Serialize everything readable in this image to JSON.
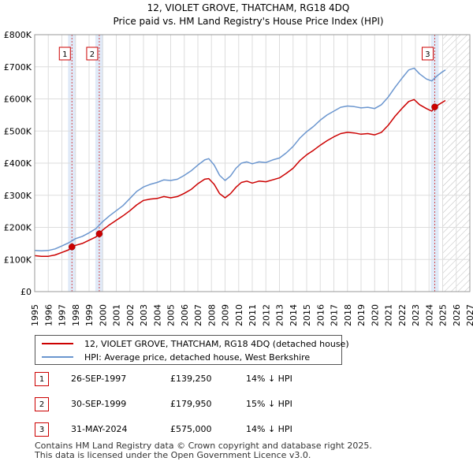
{
  "chart_data": {
    "type": "line",
    "title": "12, VIOLET GROVE, THATCHAM, RG18 4DQ",
    "subtitle": "Price paid vs. HM Land Registry's House Price Index (HPI)",
    "xlim": [
      1995,
      2027
    ],
    "ylim": [
      0,
      800000
    ],
    "x_ticks": [
      "1995",
      "1996",
      "1997",
      "1998",
      "1999",
      "2000",
      "2001",
      "2002",
      "2003",
      "2004",
      "2005",
      "2006",
      "2007",
      "2008",
      "2009",
      "2010",
      "2011",
      "2012",
      "2013",
      "2014",
      "2015",
      "2016",
      "2017",
      "2018",
      "2019",
      "2020",
      "2021",
      "2022",
      "2023",
      "2024",
      "2025",
      "2026",
      "2027"
    ],
    "y_ticks": [
      {
        "value": 0,
        "label": "£0"
      },
      {
        "value": 100000,
        "label": "£100K"
      },
      {
        "value": 200000,
        "label": "£200K"
      },
      {
        "value": 300000,
        "label": "£300K"
      },
      {
        "value": 400000,
        "label": "£400K"
      },
      {
        "value": 500000,
        "label": "£500K"
      },
      {
        "value": 600000,
        "label": "£600K"
      },
      {
        "value": 700000,
        "label": "£700K"
      },
      {
        "value": 800000,
        "label": "£800K"
      }
    ],
    "future_start": 2025.0,
    "series": [
      {
        "name": "12, VIOLET GROVE, THATCHAM, RG18 4DQ (detached house)",
        "color": "#cc0000",
        "points": [
          [
            1995.0,
            112000
          ],
          [
            1995.5,
            110000
          ],
          [
            1996.0,
            110000
          ],
          [
            1996.5,
            114000
          ],
          [
            1997.0,
            122000
          ],
          [
            1997.5,
            130000
          ],
          [
            1997.74,
            139250
          ],
          [
            1998.0,
            144000
          ],
          [
            1998.5,
            150000
          ],
          [
            1999.0,
            160000
          ],
          [
            1999.5,
            170000
          ],
          [
            1999.75,
            179950
          ],
          [
            2000.0,
            192000
          ],
          [
            2000.5,
            208000
          ],
          [
            2001.0,
            222000
          ],
          [
            2001.5,
            236000
          ],
          [
            2002.0,
            252000
          ],
          [
            2002.5,
            270000
          ],
          [
            2003.0,
            284000
          ],
          [
            2003.5,
            288000
          ],
          [
            2004.0,
            290000
          ],
          [
            2004.5,
            296000
          ],
          [
            2005.0,
            292000
          ],
          [
            2005.5,
            296000
          ],
          [
            2006.0,
            306000
          ],
          [
            2006.5,
            318000
          ],
          [
            2007.0,
            336000
          ],
          [
            2007.5,
            350000
          ],
          [
            2007.8,
            352000
          ],
          [
            2008.2,
            334000
          ],
          [
            2008.6,
            305000
          ],
          [
            2009.0,
            292000
          ],
          [
            2009.4,
            305000
          ],
          [
            2009.8,
            325000
          ],
          [
            2010.2,
            340000
          ],
          [
            2010.6,
            344000
          ],
          [
            2011.0,
            338000
          ],
          [
            2011.5,
            344000
          ],
          [
            2012.0,
            342000
          ],
          [
            2012.5,
            348000
          ],
          [
            2013.0,
            354000
          ],
          [
            2013.5,
            368000
          ],
          [
            2014.0,
            384000
          ],
          [
            2014.5,
            408000
          ],
          [
            2015.0,
            426000
          ],
          [
            2015.5,
            440000
          ],
          [
            2016.0,
            456000
          ],
          [
            2016.5,
            470000
          ],
          [
            2017.0,
            482000
          ],
          [
            2017.5,
            492000
          ],
          [
            2018.0,
            496000
          ],
          [
            2018.5,
            494000
          ],
          [
            2019.0,
            490000
          ],
          [
            2019.5,
            492000
          ],
          [
            2020.0,
            488000
          ],
          [
            2020.5,
            496000
          ],
          [
            2021.0,
            518000
          ],
          [
            2021.5,
            546000
          ],
          [
            2022.0,
            570000
          ],
          [
            2022.5,
            592000
          ],
          [
            2022.9,
            598000
          ],
          [
            2023.3,
            582000
          ],
          [
            2023.8,
            570000
          ],
          [
            2024.2,
            562000
          ],
          [
            2024.42,
            575000
          ],
          [
            2024.7,
            582000
          ],
          [
            2025.0,
            590000
          ],
          [
            2025.2,
            595000
          ]
        ]
      },
      {
        "name": "HPI: Average price, detached house, West Berkshire",
        "color": "#6b96cf",
        "points": [
          [
            1995.0,
            128000
          ],
          [
            1995.5,
            127000
          ],
          [
            1996.0,
            128000
          ],
          [
            1996.5,
            133000
          ],
          [
            1997.0,
            142000
          ],
          [
            1997.5,
            152000
          ],
          [
            1998.0,
            165000
          ],
          [
            1998.5,
            172000
          ],
          [
            1999.0,
            183000
          ],
          [
            1999.5,
            196000
          ],
          [
            2000.0,
            218000
          ],
          [
            2000.5,
            236000
          ],
          [
            2001.0,
            252000
          ],
          [
            2001.5,
            268000
          ],
          [
            2002.0,
            290000
          ],
          [
            2002.5,
            312000
          ],
          [
            2003.0,
            326000
          ],
          [
            2003.5,
            334000
          ],
          [
            2004.0,
            340000
          ],
          [
            2004.5,
            348000
          ],
          [
            2005.0,
            346000
          ],
          [
            2005.5,
            350000
          ],
          [
            2006.0,
            362000
          ],
          [
            2006.5,
            376000
          ],
          [
            2007.0,
            394000
          ],
          [
            2007.5,
            410000
          ],
          [
            2007.8,
            414000
          ],
          [
            2008.2,
            394000
          ],
          [
            2008.6,
            362000
          ],
          [
            2009.0,
            346000
          ],
          [
            2009.4,
            360000
          ],
          [
            2009.8,
            384000
          ],
          [
            2010.2,
            400000
          ],
          [
            2010.6,
            404000
          ],
          [
            2011.0,
            398000
          ],
          [
            2011.5,
            404000
          ],
          [
            2012.0,
            402000
          ],
          [
            2012.5,
            410000
          ],
          [
            2013.0,
            416000
          ],
          [
            2013.5,
            432000
          ],
          [
            2014.0,
            452000
          ],
          [
            2014.5,
            478000
          ],
          [
            2015.0,
            498000
          ],
          [
            2015.5,
            514000
          ],
          [
            2016.0,
            534000
          ],
          [
            2016.5,
            550000
          ],
          [
            2017.0,
            562000
          ],
          [
            2017.5,
            574000
          ],
          [
            2018.0,
            578000
          ],
          [
            2018.5,
            576000
          ],
          [
            2019.0,
            572000
          ],
          [
            2019.5,
            574000
          ],
          [
            2020.0,
            570000
          ],
          [
            2020.5,
            582000
          ],
          [
            2021.0,
            606000
          ],
          [
            2021.5,
            636000
          ],
          [
            2022.0,
            664000
          ],
          [
            2022.5,
            690000
          ],
          [
            2022.9,
            696000
          ],
          [
            2023.3,
            678000
          ],
          [
            2023.8,
            662000
          ],
          [
            2024.2,
            656000
          ],
          [
            2024.6,
            672000
          ],
          [
            2025.0,
            685000
          ],
          [
            2025.2,
            690000
          ]
        ]
      }
    ],
    "sales": [
      {
        "num": "1",
        "x": 1997.74,
        "price": 139250
      },
      {
        "num": "2",
        "x": 1999.75,
        "price": 179950
      },
      {
        "num": "3",
        "x": 2024.42,
        "price": 575000
      }
    ]
  },
  "legend": {
    "property": "12, VIOLET GROVE, THATCHAM, RG18 4DQ (detached house)",
    "hpi": "HPI: Average price, detached house, West Berkshire"
  },
  "sales_table": [
    {
      "num": "1",
      "date": "26-SEP-1997",
      "price": "£139,250",
      "hpi": "14% ↓ HPI"
    },
    {
      "num": "2",
      "date": "30-SEP-1999",
      "price": "£179,950",
      "hpi": "15% ↓ HPI"
    },
    {
      "num": "3",
      "date": "31-MAY-2024",
      "price": "£575,000",
      "hpi": "14% ↓ HPI"
    }
  ],
  "footer": {
    "line1": "Contains HM Land Registry data © Crown copyright and database right 2025.",
    "line2": "This data is licensed under the Open Government Licence v3.0."
  },
  "colors": {
    "property": "#cc0000",
    "hpi": "#6b96cf",
    "band": "#dde8f7",
    "marker": "#cc0000"
  }
}
